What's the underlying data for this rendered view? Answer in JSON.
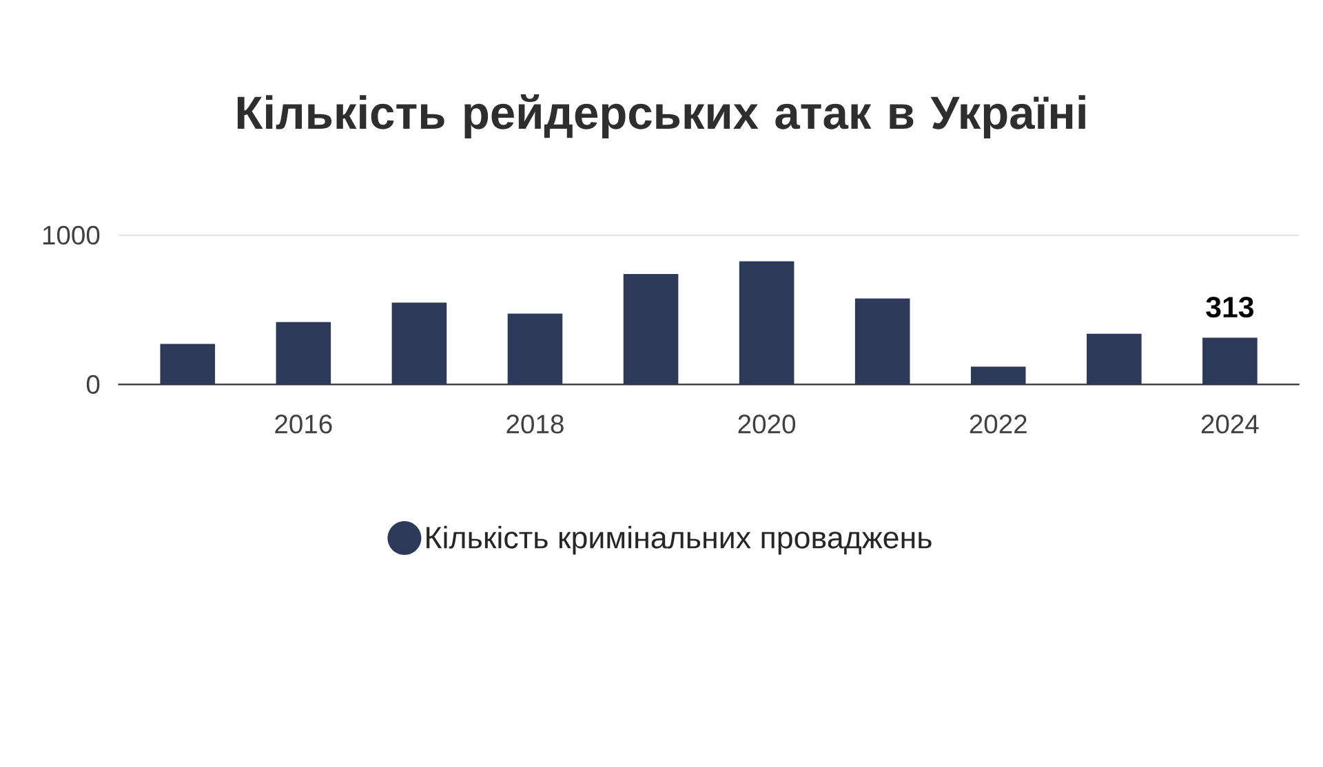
{
  "chart_data": {
    "type": "bar",
    "title": "Кількість рейдерських атак в Україні",
    "x": [
      2015,
      2016,
      2017,
      2018,
      2019,
      2020,
      2021,
      2022,
      2023,
      2024
    ],
    "series": [
      {
        "name": "Кількість кримінальних проваджень",
        "color": "#2e3a59",
        "values": [
          271,
          418,
          548,
          475,
          740,
          825,
          576,
          119,
          339,
          313
        ],
        "value_labels": [
          null,
          null,
          null,
          null,
          null,
          null,
          null,
          null,
          null,
          "313"
        ]
      }
    ],
    "xlim": [
      2014.4,
      2024.6
    ],
    "xticks": [
      2016,
      2018,
      2020,
      2022,
      2024
    ],
    "ylim": [
      0,
      1000
    ],
    "yticks": [
      0,
      1000
    ],
    "grid": "y",
    "legend": "bottom"
  }
}
